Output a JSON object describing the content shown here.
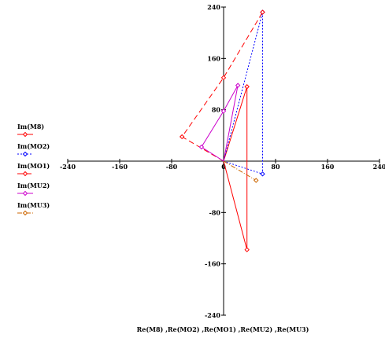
{
  "chart_data": {
    "type": "line",
    "xlabel": "Re(M8) ,Re(MO2) ,Re(MO1) ,Re(MU2) ,Re(MU3)",
    "ylabel": "",
    "xlim": [
      -240,
      240
    ],
    "ylim": [
      -240,
      240
    ],
    "xticks": [
      -240,
      -160,
      -80,
      0,
      80,
      160,
      240
    ],
    "yticks": [
      -240,
      -160,
      -80,
      0,
      80,
      160,
      240
    ],
    "xtick_labels": [
      "-240",
      "-160",
      "-80",
      "0",
      "80",
      "160",
      "240"
    ],
    "ytick_labels": [
      "-240",
      "-160",
      "-80",
      "0",
      "80",
      "160",
      "240"
    ],
    "legend_position": "left",
    "series": [
      {
        "name": "Im(M8)",
        "color": "#ff0000",
        "dash": "solid",
        "marker": "diamond",
        "points": [
          [
            0,
            0
          ],
          [
            36,
            116
          ],
          [
            36,
            -138
          ],
          [
            0,
            0
          ]
        ]
      },
      {
        "name": "Im(MO2)",
        "color": "#0000ff",
        "dash": "dotted",
        "marker": "diamond",
        "points": [
          [
            0,
            0
          ],
          [
            60,
            232
          ],
          [
            60,
            -20
          ],
          [
            0,
            0
          ]
        ]
      },
      {
        "name": "Im(MO1)",
        "color": "#ff0000",
        "dash": "dashed",
        "marker": "diamond",
        "points": [
          [
            0,
            0
          ],
          [
            -64,
            38
          ],
          [
            0,
            130
          ],
          [
            60,
            232
          ]
        ]
      },
      {
        "name": "Im(MU2)",
        "color": "#cc00cc",
        "dash": "solid",
        "marker": "diamond",
        "points": [
          [
            0,
            0
          ],
          [
            -34,
            22
          ],
          [
            0,
            78
          ],
          [
            22,
            118
          ],
          [
            0,
            0
          ]
        ]
      },
      {
        "name": "Im(MU3)",
        "color": "#cc6600",
        "dash": "dashdot",
        "marker": "diamond",
        "points": [
          [
            0,
            0
          ],
          [
            50,
            -30
          ]
        ]
      }
    ]
  }
}
